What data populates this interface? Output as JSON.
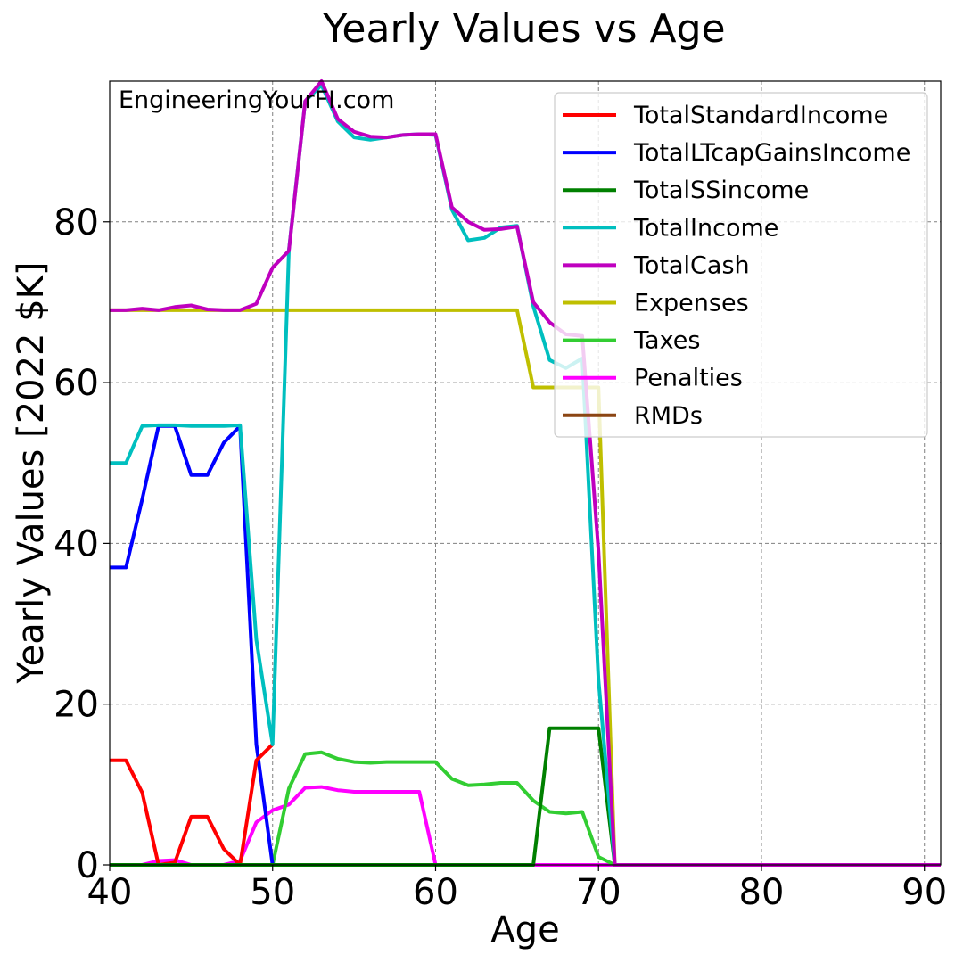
{
  "chart_data": {
    "type": "line",
    "title": "Yearly Values vs Age",
    "xlabel": "Age",
    "ylabel": "Yearly Values [2022 $K]",
    "xlim": [
      40,
      91
    ],
    "ylim": [
      0,
      97.5
    ],
    "xticks": [
      40,
      50,
      60,
      70,
      80,
      90
    ],
    "yticks": [
      0,
      20,
      40,
      60,
      80
    ],
    "grid": true,
    "legend_position": "top-right",
    "annotation": "EngineeringYourFI.com",
    "x": [
      40,
      41,
      42,
      43,
      44,
      45,
      46,
      47,
      48,
      49,
      50,
      51,
      52,
      53,
      54,
      55,
      56,
      57,
      58,
      59,
      60,
      61,
      62,
      63,
      64,
      65,
      66,
      67,
      68,
      69,
      70,
      71,
      72,
      73,
      74,
      75,
      76,
      77,
      78,
      79,
      80,
      81,
      82,
      83,
      84,
      85,
      86,
      87,
      88,
      89,
      90,
      91
    ],
    "series": [
      {
        "name": "TotalStandardIncome",
        "color": "#ff0000",
        "values": [
          13,
          13,
          9,
          0,
          0.3,
          6,
          6,
          2,
          0,
          13,
          15,
          null,
          null,
          null,
          null,
          null,
          null,
          null,
          null,
          null,
          null,
          null,
          null,
          null,
          null,
          null,
          null,
          null,
          null,
          null,
          null,
          null,
          null,
          null,
          null,
          null,
          null,
          null,
          null,
          null,
          null,
          null,
          null,
          null,
          null,
          null,
          null,
          null,
          null,
          null,
          null,
          null
        ]
      },
      {
        "name": "TotalLTcapGainsIncome",
        "color": "#0000ff",
        "values": [
          37,
          37,
          45.5,
          54.6,
          54.6,
          48.5,
          48.5,
          52.5,
          54.6,
          15,
          0,
          null,
          null,
          null,
          null,
          null,
          null,
          null,
          null,
          null,
          null,
          null,
          null,
          null,
          null,
          null,
          null,
          null,
          null,
          null,
          null,
          null,
          null,
          null,
          null,
          null,
          null,
          null,
          null,
          null,
          null,
          null,
          null,
          null,
          null,
          null,
          null,
          null,
          null,
          null,
          null,
          null
        ]
      },
      {
        "name": "TotalSSincome",
        "color": "#008000",
        "values": [
          0,
          0,
          0,
          0,
          0,
          0,
          0,
          0,
          0,
          0,
          0,
          0,
          0,
          0,
          0,
          0,
          0,
          0,
          0,
          0,
          0,
          0,
          0,
          0,
          0,
          0,
          0,
          17,
          17,
          17,
          17,
          0,
          0,
          0,
          0,
          0,
          0,
          0,
          0,
          0,
          0,
          0,
          0,
          0,
          0,
          0,
          0,
          0,
          0,
          0,
          0,
          0
        ]
      },
      {
        "name": "TotalIncome",
        "color": "#00bfbf",
        "values": [
          50,
          50,
          54.6,
          54.7,
          54.7,
          54.6,
          54.6,
          54.6,
          54.7,
          28,
          15,
          76.5,
          95,
          97,
          92.5,
          90.5,
          90.2,
          90.5,
          90.8,
          90.9,
          90.8,
          81.5,
          77.7,
          78,
          79.3,
          79.5,
          69.5,
          62.8,
          61.8,
          63,
          23,
          0,
          0,
          0,
          0,
          0,
          0,
          0,
          0,
          0,
          0,
          0,
          0,
          0,
          0,
          0,
          0,
          0,
          0,
          0,
          0,
          0
        ]
      },
      {
        "name": "TotalCash",
        "color": "#bf00bf",
        "values": [
          69,
          69,
          69.2,
          69,
          69.4,
          69.6,
          69.1,
          69,
          69,
          69.8,
          74.3,
          76.4,
          95,
          97.5,
          92.8,
          91.2,
          90.6,
          90.5,
          90.8,
          90.9,
          90.9,
          81.8,
          80,
          79,
          79.1,
          79.4,
          70,
          67.5,
          66,
          65.8,
          39,
          0,
          0,
          0,
          0,
          0,
          0,
          0,
          0,
          0,
          0,
          0,
          0,
          0,
          0,
          0,
          0,
          0,
          0,
          0,
          0,
          0
        ]
      },
      {
        "name": "Expenses",
        "color": "#bfbf00",
        "values": [
          69,
          69,
          69,
          69,
          69,
          69,
          69,
          69,
          69,
          69,
          69,
          69,
          69,
          69,
          69,
          69,
          69,
          69,
          69,
          69,
          69,
          69,
          69,
          69,
          69,
          69,
          59.4,
          59.4,
          59.4,
          59.4,
          59.4,
          0,
          0,
          0,
          0,
          0,
          0,
          0,
          0,
          0,
          0,
          0,
          0,
          0,
          0,
          0,
          0,
          0,
          0,
          0,
          0,
          0
        ]
      },
      {
        "name": "Taxes",
        "color": "#32cd32",
        "values": [
          0,
          0,
          0,
          0,
          0,
          0,
          0,
          0,
          0,
          0,
          0,
          9.5,
          13.8,
          14,
          13.2,
          12.8,
          12.7,
          12.8,
          12.8,
          12.8,
          12.8,
          10.7,
          9.9,
          10,
          10.2,
          10.2,
          8,
          6.6,
          6.4,
          6.6,
          1,
          0,
          0,
          0,
          0,
          0,
          0,
          0,
          0,
          0,
          0,
          0,
          0,
          0,
          0,
          0,
          0,
          0,
          0,
          0,
          0,
          0
        ]
      },
      {
        "name": "Penalties",
        "color": "#ff00ff",
        "values": [
          0,
          0,
          0,
          0.5,
          0.6,
          0,
          0,
          0,
          0.5,
          5.3,
          6.8,
          7.5,
          9.6,
          9.7,
          9.3,
          9.1,
          9.1,
          9.1,
          9.1,
          9.1,
          0,
          0,
          0,
          0,
          0,
          0,
          0,
          0,
          0,
          0,
          0,
          0,
          0,
          0,
          0,
          0,
          0,
          0,
          0,
          0,
          0,
          0,
          0,
          0,
          0,
          0,
          0,
          0,
          0,
          0,
          0,
          0
        ]
      },
      {
        "name": "RMDs",
        "color": "#8b4513",
        "values": [
          0,
          0,
          0,
          0,
          0,
          0,
          0,
          0,
          0,
          0,
          0,
          0,
          0,
          0,
          0,
          0,
          0,
          0,
          0,
          0,
          0,
          0,
          0,
          0,
          0,
          0,
          0,
          0,
          0,
          0,
          0,
          0,
          0,
          0,
          0,
          0,
          0,
          0,
          0,
          0,
          0,
          0,
          0,
          0,
          0,
          0,
          0,
          0,
          0,
          0,
          0,
          0
        ]
      }
    ]
  }
}
